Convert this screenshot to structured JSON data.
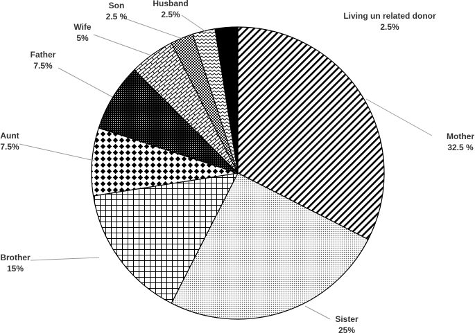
{
  "chart_data": {
    "type": "pie",
    "categories": [
      "Mother",
      "Sister",
      "Brother",
      "Aunt",
      "Father",
      "Wife",
      "Son",
      "Husband",
      "Living un related donor"
    ],
    "values": [
      32.5,
      25,
      15,
      7.5,
      7.5,
      5,
      2.5,
      2.5,
      2.5
    ],
    "value_labels": [
      "32.5 %",
      "25%",
      "15%",
      "7.5%",
      "7.5%",
      "5%",
      "2.5 %",
      "2.5%",
      "2.5%"
    ]
  }
}
